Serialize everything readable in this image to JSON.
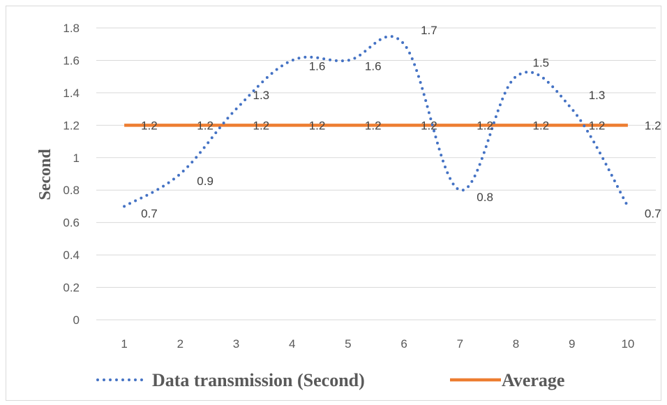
{
  "chart_data": {
    "type": "line",
    "title": "",
    "xlabel": "",
    "ylabel": "Second",
    "categories": [
      "1",
      "2",
      "3",
      "4",
      "5",
      "6",
      "7",
      "8",
      "9",
      "10"
    ],
    "ylim": [
      0,
      1.8
    ],
    "y_ticks": [
      "0",
      "0.2",
      "0.4",
      "0.6",
      "0.8",
      "1",
      "1.2",
      "1.4",
      "1.6",
      "1.8"
    ],
    "grid": true,
    "legend_position": "bottom",
    "series": [
      {
        "name": "Data transmission (Second)",
        "values": [
          0.7,
          0.9,
          1.3,
          1.6,
          1.6,
          1.7,
          0.8,
          1.5,
          1.3,
          0.7
        ],
        "labels": [
          "0.7",
          "0.9",
          "1.3",
          "1.6",
          "1.6",
          "1.7",
          "0.8",
          "1.5",
          "1.3",
          "0.7"
        ],
        "color": "#4472C4",
        "line_style": "dotted"
      },
      {
        "name": "Average",
        "values": [
          1.2,
          1.2,
          1.2,
          1.2,
          1.2,
          1.2,
          1.2,
          1.2,
          1.2,
          1.2
        ],
        "labels": [
          "1.2",
          "1.2",
          "1.2",
          "1.2",
          "1.2",
          "1.2",
          "1.2",
          "1.2",
          "1.2",
          "1.2"
        ],
        "color": "#ED7D31",
        "line_style": "solid"
      }
    ]
  },
  "colors": {
    "gridline": "#d9d9d9",
    "axis_text": "#595959"
  }
}
